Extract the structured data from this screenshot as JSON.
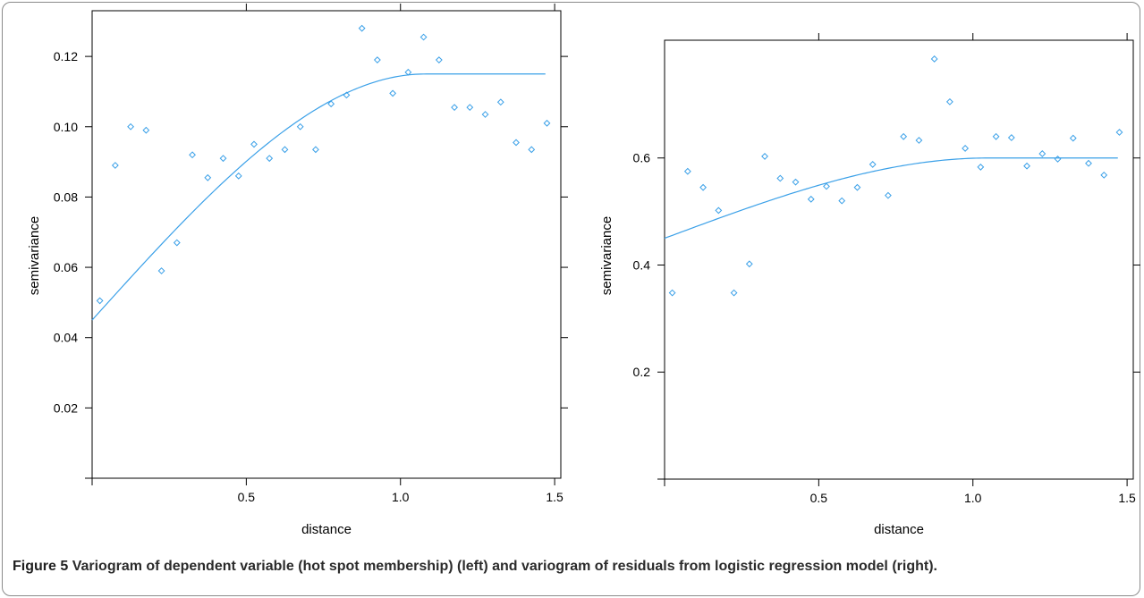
{
  "caption": {
    "label": "Figure 5",
    "text": "Variogram of dependent variable (hot spot membership) (left) and variogram of residuals from logistic regression model (right)."
  },
  "colors": {
    "accent": "#3aa0e8",
    "frame": "#8a8a8a",
    "axis": "#000000"
  },
  "chart_data": [
    {
      "type": "scatter",
      "title": "",
      "xlabel": "distance",
      "ylabel": "semivariance",
      "xlim": [
        0.0,
        1.52
      ],
      "ylim": [
        0.0,
        0.133
      ],
      "x_ticks": [
        0.5,
        1.0,
        1.5
      ],
      "x_tick_labels": [
        "0.5",
        "1.0",
        "1.5"
      ],
      "y_ticks": [
        0.02,
        0.04,
        0.06,
        0.08,
        0.1,
        0.12
      ],
      "y_tick_labels": [
        "0.02",
        "0.04",
        "0.06",
        "0.08",
        "0.10",
        "0.12"
      ],
      "grid": false,
      "series": [
        {
          "kind": "points",
          "marker": "diamond",
          "x": [
            0.025,
            0.075,
            0.125,
            0.175,
            0.225,
            0.275,
            0.325,
            0.375,
            0.425,
            0.475,
            0.525,
            0.575,
            0.625,
            0.675,
            0.725,
            0.775,
            0.825,
            0.875,
            0.925,
            0.975,
            1.025,
            1.075,
            1.125,
            1.175,
            1.225,
            1.275,
            1.325,
            1.375,
            1.425,
            1.475
          ],
          "y": [
            0.0505,
            0.089,
            0.1,
            0.099,
            0.059,
            0.067,
            0.092,
            0.0855,
            0.091,
            0.086,
            0.095,
            0.091,
            0.0935,
            0.1,
            0.0935,
            0.1065,
            0.109,
            0.128,
            0.119,
            0.1095,
            0.1155,
            0.1255,
            0.119,
            0.1055,
            0.1055,
            0.1035,
            0.107,
            0.0955,
            0.0935,
            0.101
          ]
        },
        {
          "kind": "fitted-curve",
          "model": "spherical",
          "nugget": 0.045,
          "sill": 0.115,
          "range": 1.08,
          "x_max": 1.47
        }
      ]
    },
    {
      "type": "scatter",
      "title": "",
      "xlabel": "distance",
      "ylabel": "semivariance",
      "xlim": [
        0.0,
        1.52
      ],
      "ylim": [
        0.0,
        0.82
      ],
      "x_ticks": [
        0.5,
        1.0,
        1.5
      ],
      "x_tick_labels": [
        "0.5",
        "1.0",
        "1.5"
      ],
      "y_ticks": [
        0.2,
        0.4,
        0.6
      ],
      "y_tick_labels": [
        "0.2",
        "0.4",
        "0.6"
      ],
      "grid": false,
      "series": [
        {
          "kind": "points",
          "marker": "diamond",
          "x": [
            0.025,
            0.075,
            0.125,
            0.175,
            0.225,
            0.275,
            0.325,
            0.375,
            0.425,
            0.475,
            0.525,
            0.575,
            0.625,
            0.675,
            0.725,
            0.775,
            0.825,
            0.875,
            0.925,
            0.975,
            1.025,
            1.075,
            1.125,
            1.175,
            1.225,
            1.275,
            1.325,
            1.375,
            1.425,
            1.475
          ],
          "y": [
            0.348,
            0.575,
            0.545,
            0.502,
            0.348,
            0.402,
            0.603,
            0.562,
            0.555,
            0.523,
            0.547,
            0.52,
            0.545,
            0.588,
            0.53,
            0.64,
            0.633,
            0.785,
            0.705,
            0.618,
            0.583,
            0.64,
            0.638,
            0.585,
            0.608,
            0.598,
            0.637,
            0.59,
            0.568,
            0.648
          ]
        },
        {
          "kind": "fitted-curve",
          "model": "spherical",
          "nugget": 0.45,
          "sill": 0.6,
          "range": 1.05,
          "x_max": 1.47
        }
      ]
    }
  ]
}
